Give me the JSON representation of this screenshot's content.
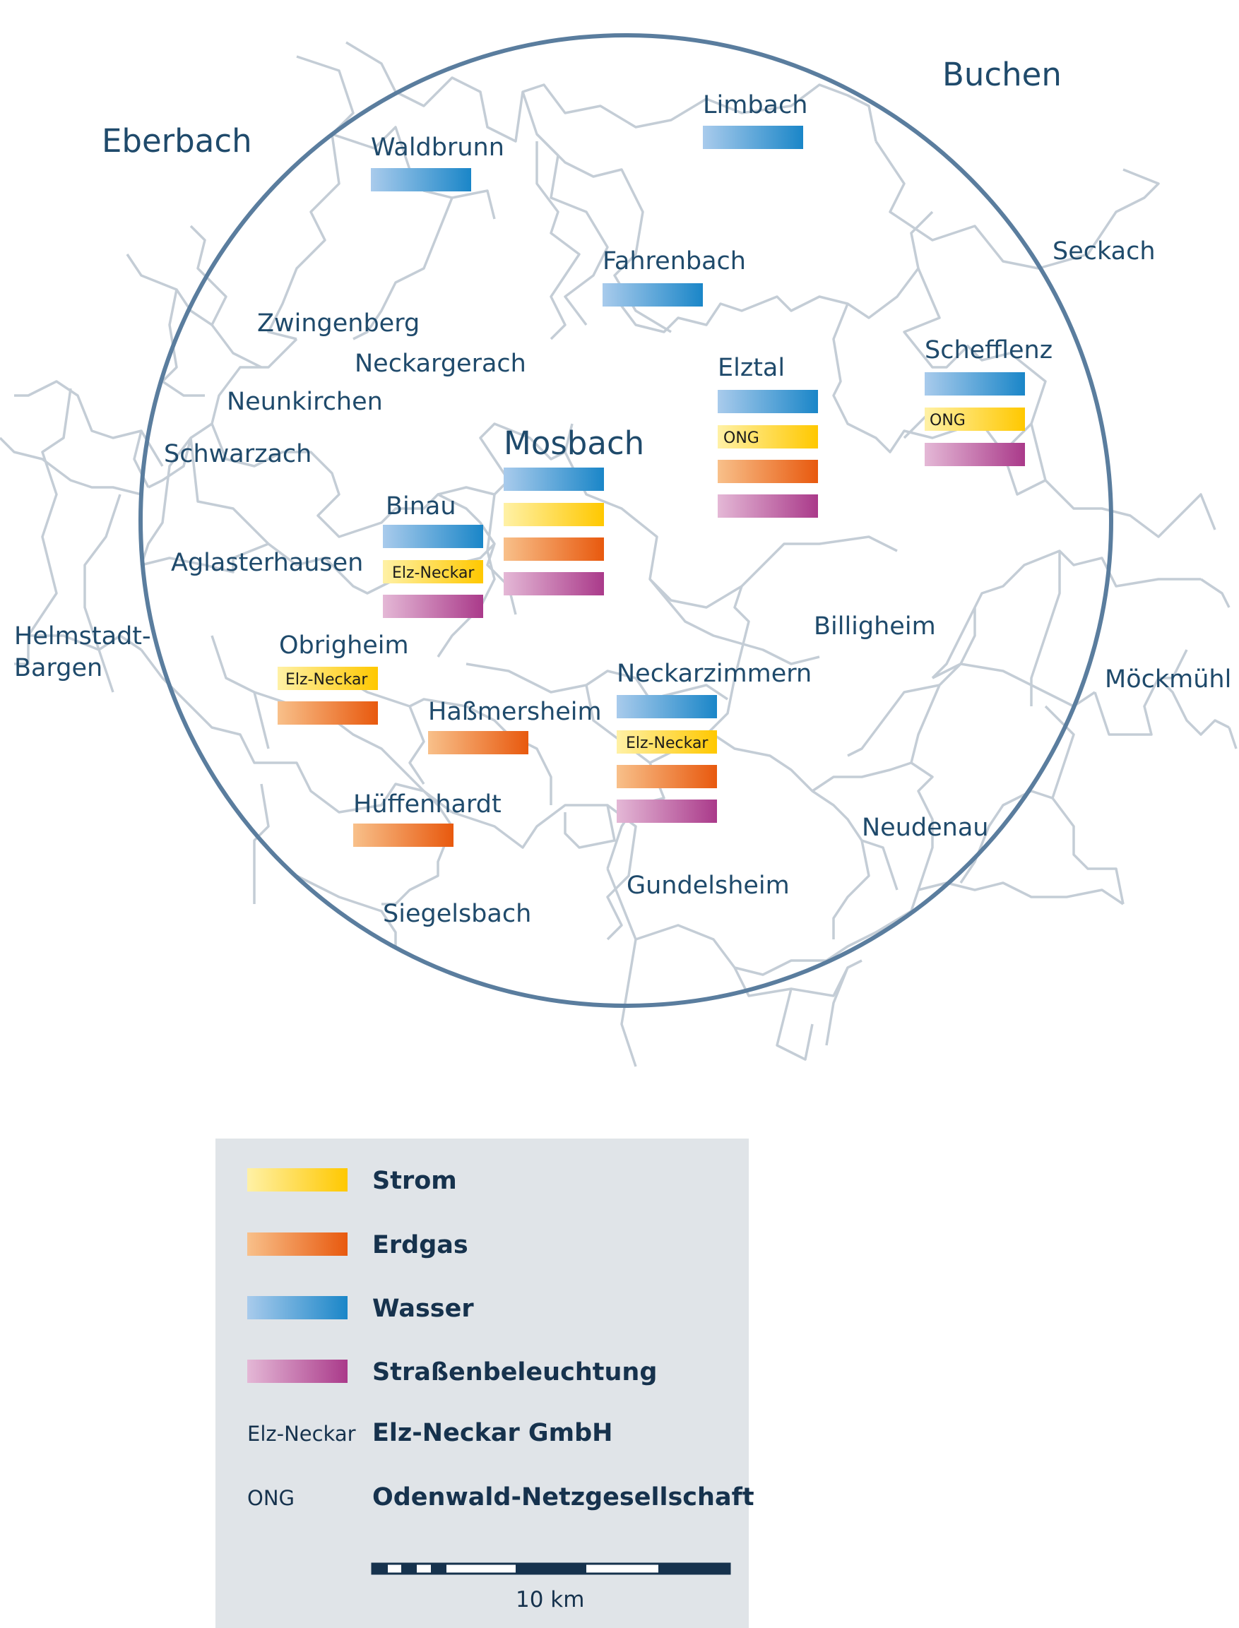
{
  "colors": {
    "strom": [
      "#fff1a6",
      "#ffc800"
    ],
    "erdgas": [
      "#f8c08a",
      "#e8590e"
    ],
    "wasser": [
      "#a9cbec",
      "#1a86c8"
    ],
    "strassenbeleuchtung": [
      "#e4b8d6",
      "#aa3a8a"
    ],
    "border": "#c4cdd6",
    "circle": "#5a7d9e",
    "legend_bg": "#e0e4e8",
    "text": "#1f4a6b"
  },
  "places": {
    "eberbach": "Eberbach",
    "buchen": "Buchen",
    "limbach": "Limbach",
    "waldbrunn": "Waldbrunn",
    "seckach": "Seckach",
    "fahrenbach": "Fahrenbach",
    "zwingenberg": "Zwingenberg",
    "neckargerach": "Neckargerach",
    "schefflenz": "Schefflenz",
    "elztal": "Elztal",
    "neunkirchen": "Neunkirchen",
    "mosbach": "Mosbach",
    "schwarzach": "Schwarzach",
    "binau": "Binau",
    "aglasterhausen": "Aglasterhausen",
    "billigheim": "Billigheim",
    "helmstadt_1": "Helmstadt-",
    "helmstadt_2": "Bargen",
    "obrigheim": "Obrigheim",
    "neckarzimmern": "Neckarzimmern",
    "moeckmuehl": "Möckmühl",
    "hassmersheim": "Haßmersheim",
    "hueffenhardt": "Hüffenhardt",
    "neudenau": "Neudenau",
    "gundelsheim": "Gundelsheim",
    "siegelsbach": "Siegelsbach"
  },
  "tags": {
    "elz_neckar": "Elz-Neckar",
    "ong": "ONG"
  },
  "legend": {
    "strom": "Strom",
    "erdgas": "Erdgas",
    "wasser": "Wasser",
    "strassenbeleuchtung": "Straßenbeleuchtung",
    "elz_neckar_abbr": "Elz-Neckar",
    "elz_neckar_name": "Elz-Neckar GmbH",
    "ong_abbr": "ONG",
    "ong_name": "Odenwald-Netzgesellschaft"
  },
  "scale": {
    "label": "10 km"
  }
}
